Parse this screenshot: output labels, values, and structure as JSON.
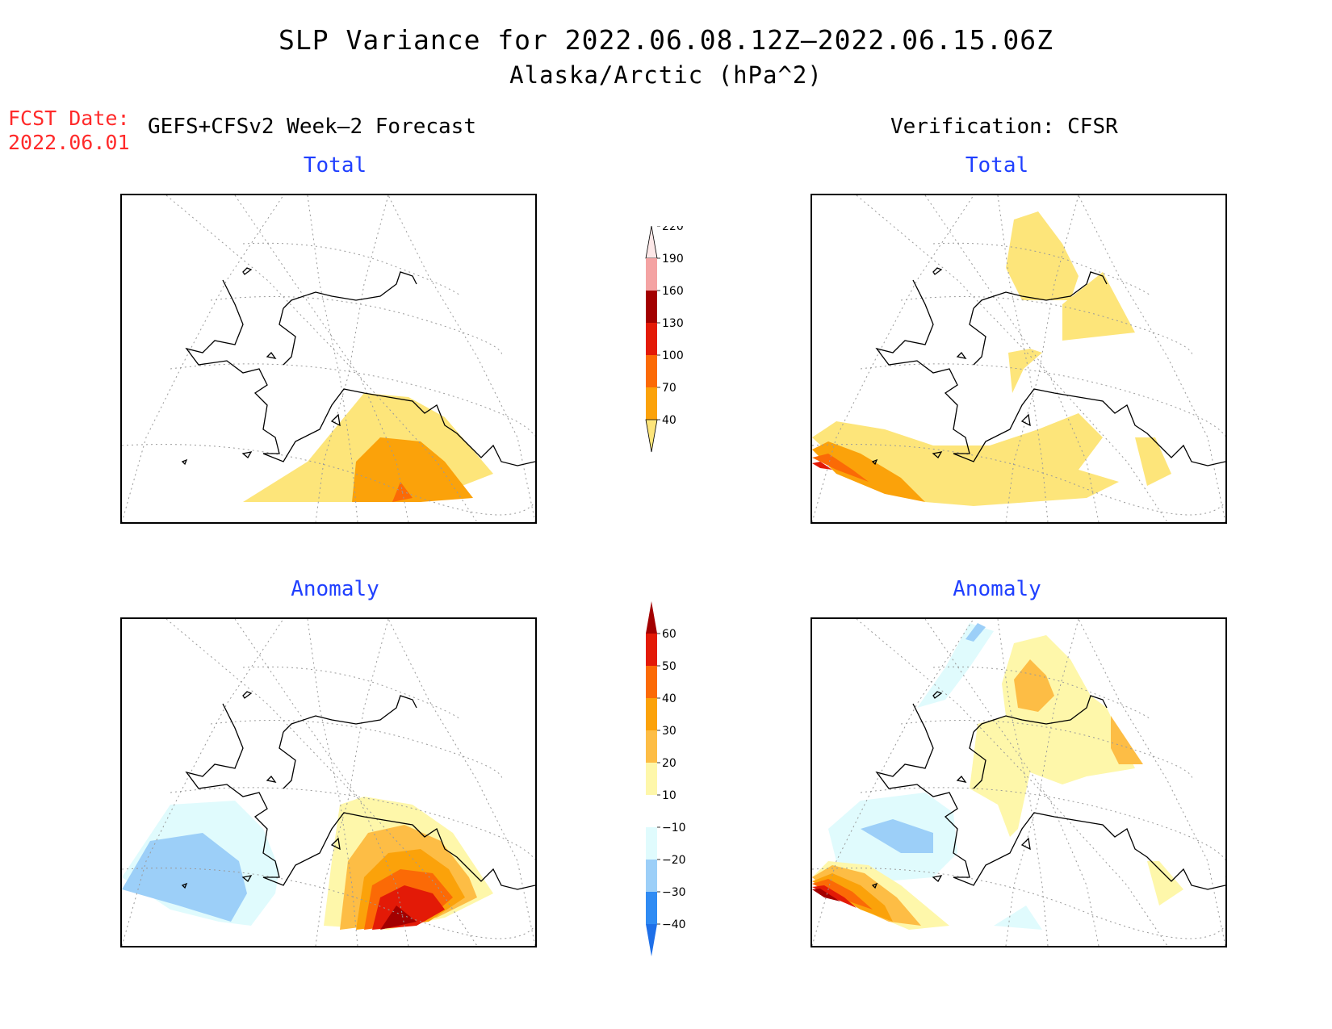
{
  "title": {
    "line1": "SLP Variance for 2022.06.08.12Z–2022.06.15.06Z",
    "line2": "Alaska/Arctic (hPa^2)"
  },
  "fcst": {
    "label": "FCST Date:",
    "date": "2022.06.01"
  },
  "forecast_header": "GEFS+CFSv2 Week–2 Forecast",
  "verification_header": "Verification: CFSR",
  "panels": {
    "fc_total": {
      "title": "Total"
    },
    "ver_total": {
      "title": "Total"
    },
    "fc_anom": {
      "title": "Anomaly"
    },
    "ver_anom": {
      "title": "Anomaly"
    }
  },
  "colorbar_total": {
    "levels": [
      "40",
      "70",
      "100",
      "130",
      "160",
      "190",
      "220"
    ],
    "colors": [
      "#fde57a",
      "#fba20a",
      "#fb6a06",
      "#e31a07",
      "#a30000",
      "#f4a3a3",
      "#fde8e8"
    ]
  },
  "colorbar_anom": {
    "levels": [
      "−40",
      "−30",
      "−20",
      "−10",
      "10",
      "20",
      "30",
      "40",
      "50",
      "60"
    ],
    "colors": [
      "#1e6fe8",
      "#2f8bf3",
      "#9ccff8",
      "#e0fbfd",
      "#ffffff",
      "#fef7aa",
      "#fdbd45",
      "#fba20a",
      "#fb6a06",
      "#e31a07",
      "#a30000"
    ]
  },
  "colors": {
    "yellow": "#fde57a",
    "orange": "#fba20a",
    "dark_orange": "#fb6a06",
    "red": "#e31a07",
    "dark_red": "#a30000",
    "light_yellow": "#fef7aa",
    "light_orange": "#fdbd45",
    "light_cyan": "#e0fbfd",
    "light_blue": "#9ccff8",
    "title_blue": "#1f3fff",
    "fcst_red": "#ff2a2a"
  }
}
